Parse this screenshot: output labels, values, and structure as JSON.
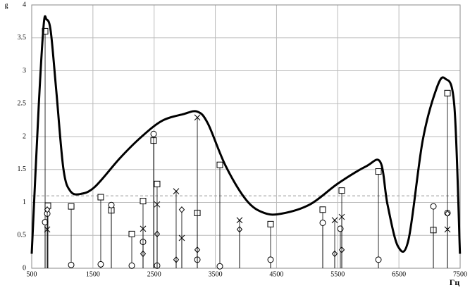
{
  "chart_data": {
    "type": "line",
    "y_label": "g",
    "x_label": "Гц",
    "xlim": [
      500,
      7500
    ],
    "xticks": [
      500,
      1500,
      2500,
      3500,
      4500,
      5500,
      6500,
      7500
    ],
    "ylim": [
      0,
      4
    ],
    "yticks": [
      0,
      0.5,
      1,
      1.5,
      2,
      2.5,
      3,
      3.5,
      4
    ],
    "grid": true,
    "hline": 1.1,
    "curve": {
      "color": "#000000",
      "x": [
        500,
        615,
        696,
        742,
        811,
        903,
        1018,
        1133,
        1306,
        1536,
        1939,
        2285,
        2630,
        2975,
        3205,
        3378,
        3666,
        4011,
        4299,
        4587,
        5047,
        5508,
        5968,
        6198,
        6313,
        6486,
        6658,
        6888,
        7118,
        7256,
        7405,
        7497
      ],
      "values": [
        0.22,
        2.47,
        3.7,
        3.78,
        3.6,
        2.68,
        1.51,
        1.17,
        1.13,
        1.24,
        1.67,
        1.99,
        2.24,
        2.34,
        2.38,
        2.2,
        1.56,
        1.03,
        0.84,
        0.83,
        0.97,
        1.29,
        1.55,
        1.61,
        0.97,
        0.33,
        0.44,
        1.94,
        2.74,
        2.88,
        2.47,
        0.22
      ]
    },
    "series": [
      {
        "marker": "square",
        "color": "#000000",
        "x": [
          719,
          765,
          1145,
          1628,
          1801,
          2135,
          2319,
          2492,
          2549,
          3206,
          3574,
          4403,
          5255,
          5566,
          6165,
          7063,
          7293
        ],
        "values": [
          3.6,
          0.95,
          0.94,
          1.08,
          0.88,
          0.52,
          1.02,
          1.94,
          1.28,
          0.84,
          1.57,
          0.67,
          0.89,
          1.18,
          1.47,
          0.58,
          2.66
        ]
      },
      {
        "marker": "circle",
        "color": "#000000",
        "x": [
          719,
          754,
          1145,
          1628,
          1801,
          2135,
          2319,
          2492,
          2549,
          3206,
          3574,
          4403,
          5255,
          5543,
          6165,
          7063,
          7293
        ],
        "values": [
          0.7,
          0.83,
          0.05,
          0.06,
          0.96,
          0.04,
          0.4,
          2.04,
          0.04,
          0.13,
          0.03,
          0.13,
          0.69,
          0.6,
          0.13,
          0.94,
          0.84
        ]
      },
      {
        "marker": "diamond",
        "color": "#000000",
        "x": [
          754,
          2319,
          2549,
          2860,
          2952,
          3206,
          3896,
          5451,
          5566,
          7293
        ],
        "values": [
          0.89,
          0.22,
          0.52,
          0.13,
          0.89,
          0.28,
          0.59,
          0.22,
          0.28,
          0.83
        ]
      },
      {
        "marker": "cross",
        "color": "#000000",
        "x": [
          754,
          2319,
          2549,
          2860,
          2952,
          3206,
          3896,
          5451,
          5566,
          7293
        ],
        "values": [
          0.59,
          0.6,
          0.97,
          1.17,
          0.46,
          2.29,
          0.73,
          0.73,
          0.78,
          0.59
        ]
      }
    ]
  }
}
